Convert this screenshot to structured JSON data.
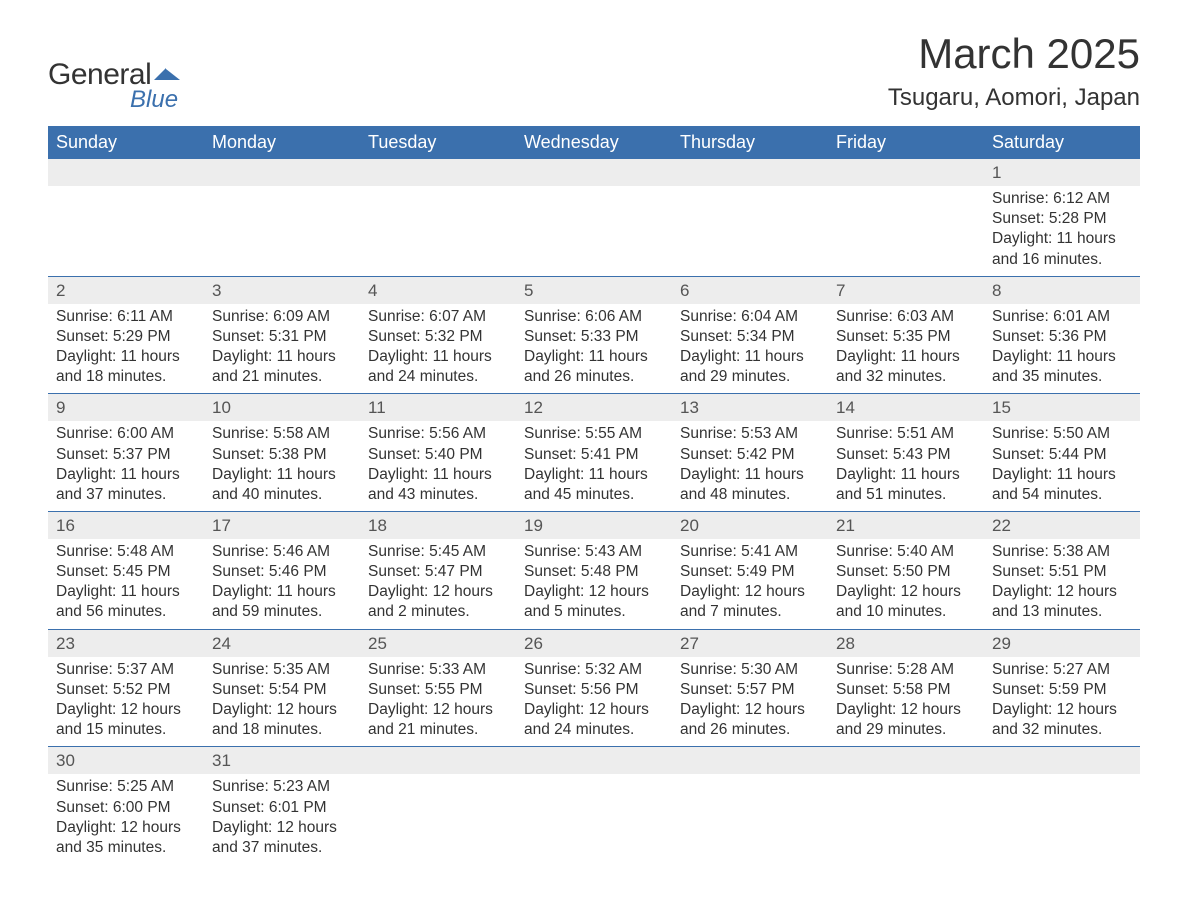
{
  "logo": {
    "text_general": "General",
    "text_blue": "Blue",
    "shape_color": "#3b70ad"
  },
  "title": "March 2025",
  "location": "Tsugaru, Aomori, Japan",
  "colors": {
    "header_bg": "#3b70ad",
    "header_text": "#ffffff",
    "daynum_bg": "#ededed",
    "row_border": "#3b70ad",
    "body_text": "#333333",
    "background": "#ffffff"
  },
  "typography": {
    "title_fontsize": 42,
    "location_fontsize": 24,
    "header_fontsize": 18,
    "daynum_fontsize": 17,
    "cell_fontsize": 15.5,
    "font_family": "Arial"
  },
  "calendar": {
    "type": "table",
    "columns": [
      "Sunday",
      "Monday",
      "Tuesday",
      "Wednesday",
      "Thursday",
      "Friday",
      "Saturday"
    ],
    "weeks": [
      [
        null,
        null,
        null,
        null,
        null,
        null,
        {
          "n": "1",
          "sr": "Sunrise: 6:12 AM",
          "ss": "Sunset: 5:28 PM",
          "d1": "Daylight: 11 hours",
          "d2": "and 16 minutes."
        }
      ],
      [
        {
          "n": "2",
          "sr": "Sunrise: 6:11 AM",
          "ss": "Sunset: 5:29 PM",
          "d1": "Daylight: 11 hours",
          "d2": "and 18 minutes."
        },
        {
          "n": "3",
          "sr": "Sunrise: 6:09 AM",
          "ss": "Sunset: 5:31 PM",
          "d1": "Daylight: 11 hours",
          "d2": "and 21 minutes."
        },
        {
          "n": "4",
          "sr": "Sunrise: 6:07 AM",
          "ss": "Sunset: 5:32 PM",
          "d1": "Daylight: 11 hours",
          "d2": "and 24 minutes."
        },
        {
          "n": "5",
          "sr": "Sunrise: 6:06 AM",
          "ss": "Sunset: 5:33 PM",
          "d1": "Daylight: 11 hours",
          "d2": "and 26 minutes."
        },
        {
          "n": "6",
          "sr": "Sunrise: 6:04 AM",
          "ss": "Sunset: 5:34 PM",
          "d1": "Daylight: 11 hours",
          "d2": "and 29 minutes."
        },
        {
          "n": "7",
          "sr": "Sunrise: 6:03 AM",
          "ss": "Sunset: 5:35 PM",
          "d1": "Daylight: 11 hours",
          "d2": "and 32 minutes."
        },
        {
          "n": "8",
          "sr": "Sunrise: 6:01 AM",
          "ss": "Sunset: 5:36 PM",
          "d1": "Daylight: 11 hours",
          "d2": "and 35 minutes."
        }
      ],
      [
        {
          "n": "9",
          "sr": "Sunrise: 6:00 AM",
          "ss": "Sunset: 5:37 PM",
          "d1": "Daylight: 11 hours",
          "d2": "and 37 minutes."
        },
        {
          "n": "10",
          "sr": "Sunrise: 5:58 AM",
          "ss": "Sunset: 5:38 PM",
          "d1": "Daylight: 11 hours",
          "d2": "and 40 minutes."
        },
        {
          "n": "11",
          "sr": "Sunrise: 5:56 AM",
          "ss": "Sunset: 5:40 PM",
          "d1": "Daylight: 11 hours",
          "d2": "and 43 minutes."
        },
        {
          "n": "12",
          "sr": "Sunrise: 5:55 AM",
          "ss": "Sunset: 5:41 PM",
          "d1": "Daylight: 11 hours",
          "d2": "and 45 minutes."
        },
        {
          "n": "13",
          "sr": "Sunrise: 5:53 AM",
          "ss": "Sunset: 5:42 PM",
          "d1": "Daylight: 11 hours",
          "d2": "and 48 minutes."
        },
        {
          "n": "14",
          "sr": "Sunrise: 5:51 AM",
          "ss": "Sunset: 5:43 PM",
          "d1": "Daylight: 11 hours",
          "d2": "and 51 minutes."
        },
        {
          "n": "15",
          "sr": "Sunrise: 5:50 AM",
          "ss": "Sunset: 5:44 PM",
          "d1": "Daylight: 11 hours",
          "d2": "and 54 minutes."
        }
      ],
      [
        {
          "n": "16",
          "sr": "Sunrise: 5:48 AM",
          "ss": "Sunset: 5:45 PM",
          "d1": "Daylight: 11 hours",
          "d2": "and 56 minutes."
        },
        {
          "n": "17",
          "sr": "Sunrise: 5:46 AM",
          "ss": "Sunset: 5:46 PM",
          "d1": "Daylight: 11 hours",
          "d2": "and 59 minutes."
        },
        {
          "n": "18",
          "sr": "Sunrise: 5:45 AM",
          "ss": "Sunset: 5:47 PM",
          "d1": "Daylight: 12 hours",
          "d2": "and 2 minutes."
        },
        {
          "n": "19",
          "sr": "Sunrise: 5:43 AM",
          "ss": "Sunset: 5:48 PM",
          "d1": "Daylight: 12 hours",
          "d2": "and 5 minutes."
        },
        {
          "n": "20",
          "sr": "Sunrise: 5:41 AM",
          "ss": "Sunset: 5:49 PM",
          "d1": "Daylight: 12 hours",
          "d2": "and 7 minutes."
        },
        {
          "n": "21",
          "sr": "Sunrise: 5:40 AM",
          "ss": "Sunset: 5:50 PM",
          "d1": "Daylight: 12 hours",
          "d2": "and 10 minutes."
        },
        {
          "n": "22",
          "sr": "Sunrise: 5:38 AM",
          "ss": "Sunset: 5:51 PM",
          "d1": "Daylight: 12 hours",
          "d2": "and 13 minutes."
        }
      ],
      [
        {
          "n": "23",
          "sr": "Sunrise: 5:37 AM",
          "ss": "Sunset: 5:52 PM",
          "d1": "Daylight: 12 hours",
          "d2": "and 15 minutes."
        },
        {
          "n": "24",
          "sr": "Sunrise: 5:35 AM",
          "ss": "Sunset: 5:54 PM",
          "d1": "Daylight: 12 hours",
          "d2": "and 18 minutes."
        },
        {
          "n": "25",
          "sr": "Sunrise: 5:33 AM",
          "ss": "Sunset: 5:55 PM",
          "d1": "Daylight: 12 hours",
          "d2": "and 21 minutes."
        },
        {
          "n": "26",
          "sr": "Sunrise: 5:32 AM",
          "ss": "Sunset: 5:56 PM",
          "d1": "Daylight: 12 hours",
          "d2": "and 24 minutes."
        },
        {
          "n": "27",
          "sr": "Sunrise: 5:30 AM",
          "ss": "Sunset: 5:57 PM",
          "d1": "Daylight: 12 hours",
          "d2": "and 26 minutes."
        },
        {
          "n": "28",
          "sr": "Sunrise: 5:28 AM",
          "ss": "Sunset: 5:58 PM",
          "d1": "Daylight: 12 hours",
          "d2": "and 29 minutes."
        },
        {
          "n": "29",
          "sr": "Sunrise: 5:27 AM",
          "ss": "Sunset: 5:59 PM",
          "d1": "Daylight: 12 hours",
          "d2": "and 32 minutes."
        }
      ],
      [
        {
          "n": "30",
          "sr": "Sunrise: 5:25 AM",
          "ss": "Sunset: 6:00 PM",
          "d1": "Daylight: 12 hours",
          "d2": "and 35 minutes."
        },
        {
          "n": "31",
          "sr": "Sunrise: 5:23 AM",
          "ss": "Sunset: 6:01 PM",
          "d1": "Daylight: 12 hours",
          "d2": "and 37 minutes."
        },
        null,
        null,
        null,
        null,
        null
      ]
    ]
  }
}
